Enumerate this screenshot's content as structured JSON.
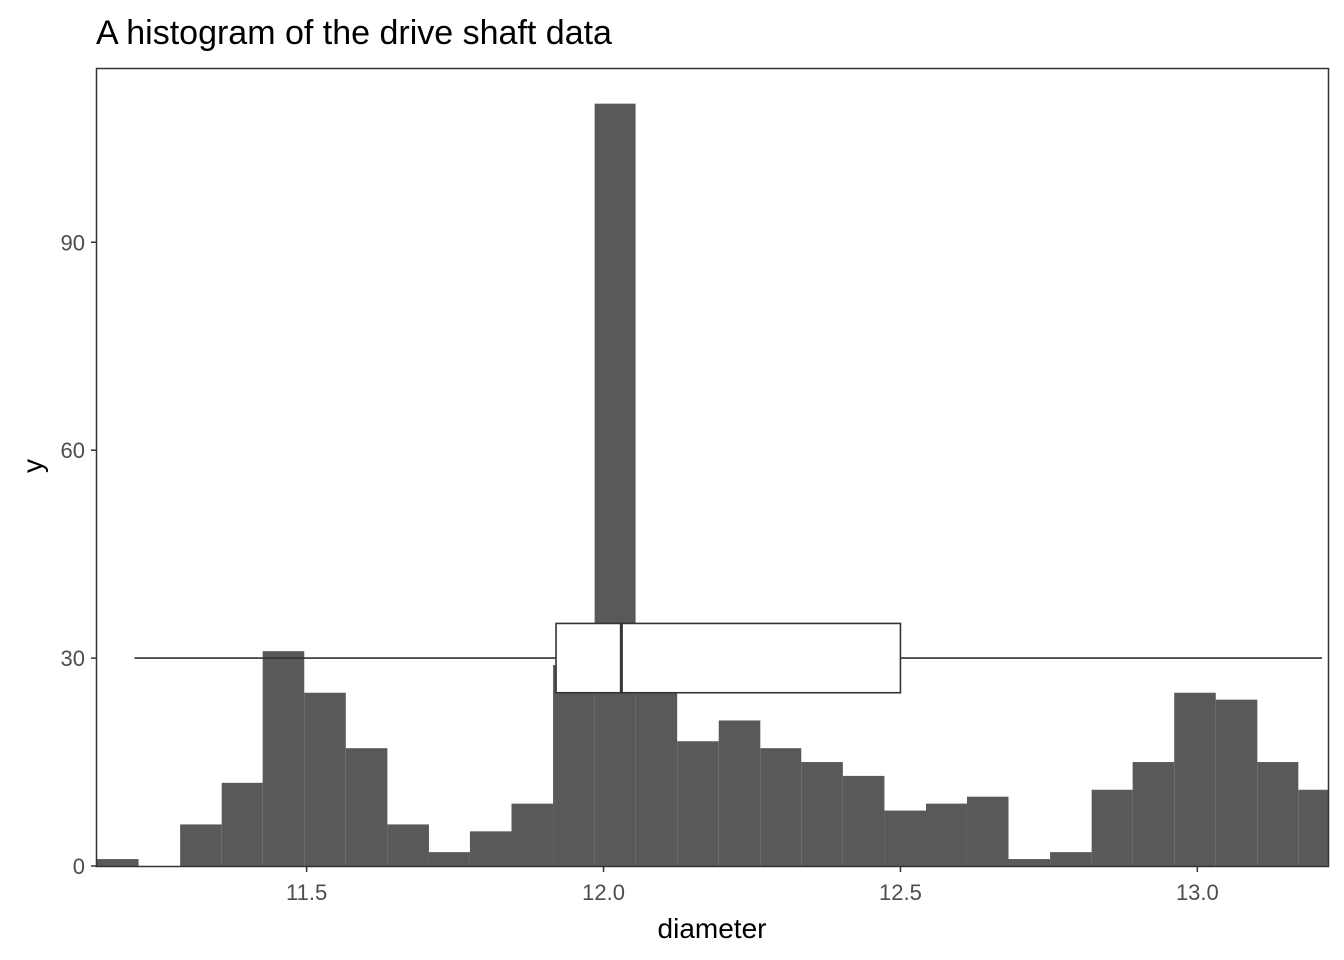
{
  "chart_data": {
    "type": "bar",
    "title": "A histogram of the drive shaft data",
    "xlabel": "diameter",
    "ylabel": "y",
    "xlim": [
      11.147,
      13.22
    ],
    "ylim": [
      0,
      115
    ],
    "grid": false,
    "x_ticks": [
      {
        "value": 11.5,
        "label": "11.5"
      },
      {
        "value": 12.0,
        "label": "12.0"
      },
      {
        "value": 12.5,
        "label": "12.5"
      },
      {
        "value": 13.0,
        "label": "13.0"
      }
    ],
    "y_ticks": [
      {
        "value": 0,
        "label": "0"
      },
      {
        "value": 30,
        "label": "30"
      },
      {
        "value": 60,
        "label": "60"
      },
      {
        "value": 90,
        "label": "90"
      }
    ],
    "bin_edges": [
      11.147,
      11.217,
      11.287,
      11.357,
      11.426,
      11.496,
      11.566,
      11.636,
      11.706,
      11.775,
      11.845,
      11.915,
      11.985,
      12.054,
      12.124,
      12.194,
      12.264,
      12.333,
      12.403,
      12.473,
      12.543,
      12.612,
      12.682,
      12.752,
      12.822,
      12.891,
      12.961,
      13.031,
      13.101,
      13.17,
      13.24
    ],
    "counts": [
      1,
      0,
      6,
      12,
      31,
      25,
      17,
      6,
      2,
      5,
      9,
      29,
      110,
      26,
      18,
      21,
      17,
      15,
      13,
      8,
      9,
      10,
      1,
      2,
      11,
      15,
      25,
      24,
      15,
      11
    ],
    "bar_color": "#595959",
    "boxplot": {
      "y": 30,
      "whisker_low": 11.21,
      "q1": 11.92,
      "median": 12.03,
      "q3": 12.5,
      "whisker_high": 13.21,
      "box_y_range": [
        25,
        35
      ]
    }
  }
}
